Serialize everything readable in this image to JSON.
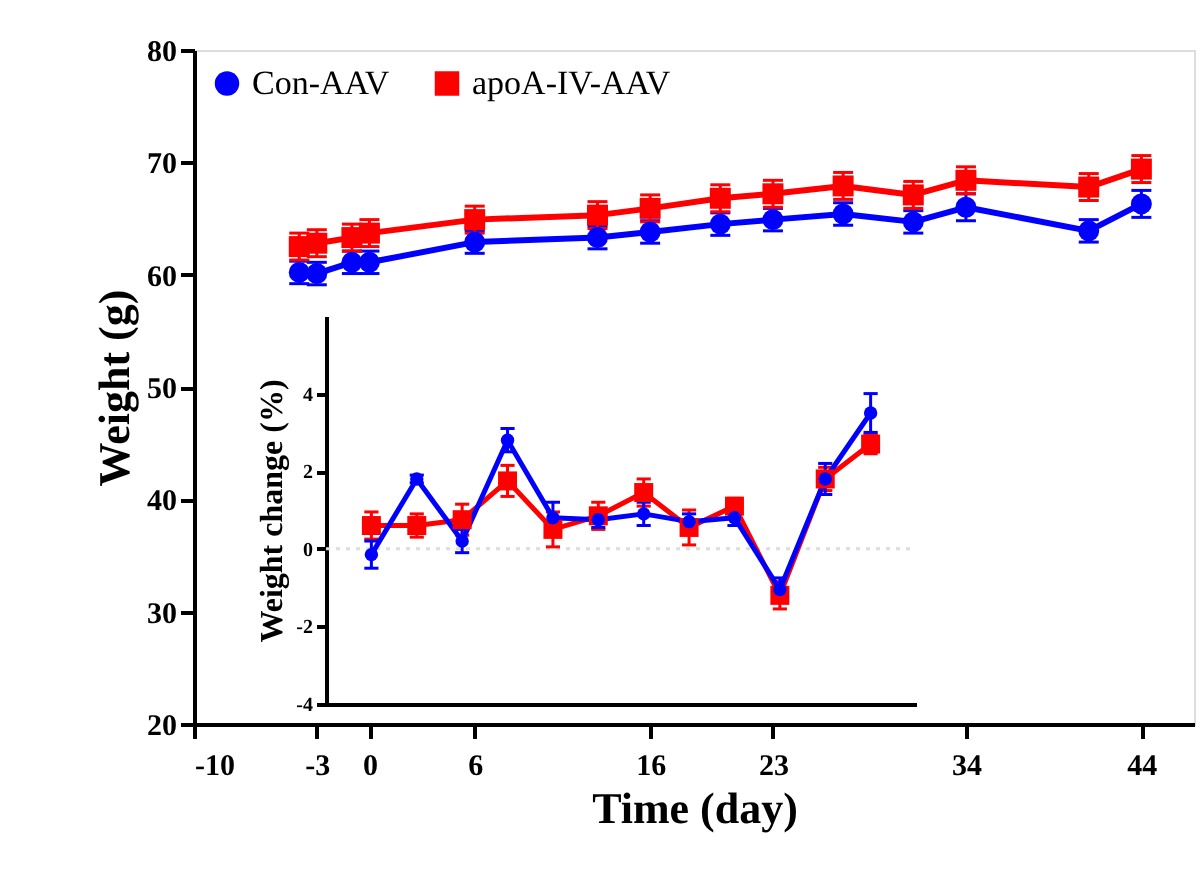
{
  "chart_data": [
    {
      "type": "line",
      "xlabel": "Time (day)",
      "ylabel": "Weight (g)",
      "x": [
        -4,
        -3,
        -1,
        0,
        6,
        13,
        16,
        20,
        23,
        27,
        31,
        34,
        41,
        44
      ],
      "xlim": [
        -10,
        47
      ],
      "xticks": [
        -10,
        -3,
        0,
        6,
        16,
        23,
        34,
        44
      ],
      "ylim": [
        20,
        80
      ],
      "yticks": [
        20,
        30,
        40,
        50,
        60,
        70,
        80
      ],
      "legend": "top left",
      "grid": false,
      "line_style": "solid",
      "series": [
        {
          "name": "Con-AAV",
          "color": "#0000ff",
          "marker": "circle",
          "values": [
            60.2,
            60.1,
            61.1,
            61.1,
            62.9,
            63.3,
            63.8,
            64.5,
            64.9,
            65.4,
            64.7,
            66.0,
            63.9,
            66.3
          ],
          "errors": [
            1.0,
            1.0,
            1.0,
            1.0,
            1.0,
            1.0,
            1.0,
            1.0,
            1.0,
            1.0,
            1.0,
            1.2,
            1.0,
            1.2
          ]
        },
        {
          "name": "apoA-IV-AAV",
          "color": "#ff0000",
          "marker": "square",
          "values": [
            62.5,
            62.8,
            63.3,
            63.7,
            64.9,
            65.3,
            65.9,
            66.8,
            67.2,
            67.9,
            67.1,
            68.4,
            67.8,
            69.4
          ],
          "errors": [
            1.2,
            1.2,
            1.2,
            1.2,
            1.2,
            1.2,
            1.2,
            1.2,
            1.2,
            1.2,
            1.2,
            1.2,
            1.2,
            1.2
          ]
        }
      ]
    },
    {
      "type": "line",
      "ylabel": "Weight change (%)",
      "categories": [
        null,
        null,
        null,
        null,
        null,
        null,
        null,
        null,
        null,
        null,
        null,
        null
      ],
      "ylim": [
        -4,
        6
      ],
      "yticks": [
        -4,
        -2,
        0,
        2,
        4
      ],
      "tick_labels": "y",
      "grid": false,
      "line_style": "solid",
      "ref_lines": [
        {
          "axis": "y",
          "value": 0,
          "color": "#dddddd",
          "line_style": "dotted"
        }
      ],
      "series": [
        {
          "color": "#ff0000",
          "marker": "square",
          "values": [
            0.6,
            0.6,
            0.75,
            1.75,
            0.5,
            0.85,
            1.45,
            0.55,
            1.1,
            -1.2,
            1.8,
            2.7
          ],
          "errors": [
            0.35,
            0.3,
            0.4,
            0.4,
            0.45,
            0.35,
            0.35,
            0.45,
            0.2,
            0.35,
            0.3,
            0.25
          ]
        },
        {
          "color": "#0000ff",
          "marker": "circle",
          "values": [
            -0.15,
            1.8,
            0.2,
            2.8,
            0.8,
            0.75,
            0.9,
            0.7,
            0.8,
            -1.05,
            1.8,
            3.5
          ],
          "errors": [
            0.35,
            0.1,
            0.3,
            0.3,
            0.4,
            0.2,
            0.3,
            0.2,
            0.2,
            0.3,
            0.4,
            0.5
          ]
        }
      ]
    }
  ]
}
